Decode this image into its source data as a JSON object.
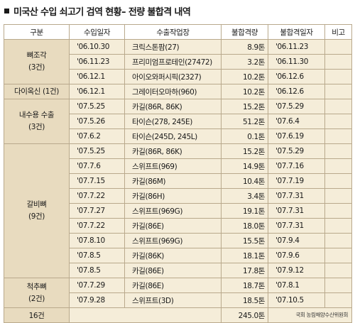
{
  "title": "미국산 수입 쇠고기 검역 현황– 전량 불합격 내역",
  "headers": [
    "구분",
    "수입일자",
    "수출작업장",
    "불합격량",
    "불합격일자",
    "비고"
  ],
  "groups": [
    {
      "category": [
        "뼈조각",
        "(3건)"
      ],
      "rows": [
        {
          "import_date": "'06.10.30",
          "plant": "크릭스톤팜(27)",
          "amount": "8.9톤",
          "reject_date": "'06.11.23"
        },
        {
          "import_date": "'06.11.23",
          "plant": "프리미엄프로테인(27472)",
          "amount": "3.2톤",
          "reject_date": "'06.11.30"
        },
        {
          "import_date": "'06.12.1",
          "plant": "아이오와퍼시픽(2327)",
          "amount": "10.2톤",
          "reject_date": "'06.12.6"
        }
      ]
    },
    {
      "category": [
        "다이옥신 (1건)"
      ],
      "rows": [
        {
          "import_date": "'06.12.1",
          "plant": "그레이터오마하(960)",
          "amount": "10.2톤",
          "reject_date": "'06.12.6"
        }
      ]
    },
    {
      "category": [
        "내수용 수출",
        "(3건)"
      ],
      "rows": [
        {
          "import_date": "'07.5.25",
          "plant": "카길(86R, 86K)",
          "amount": "15.2톤",
          "reject_date": "'07.5.29"
        },
        {
          "import_date": "'07.5.26",
          "plant": "타이슨(278, 245E)",
          "amount": "51.2톤",
          "reject_date": "'07.6.4"
        },
        {
          "import_date": "'07.6.2",
          "plant": "타이슨(245D, 245L)",
          "amount": "0.1톤",
          "reject_date": "'07.6.19"
        }
      ]
    },
    {
      "category": [
        "갈비뼈",
        "(9건)"
      ],
      "rows": [
        {
          "import_date": "'07.5.25",
          "plant": "카길(86R, 86K)",
          "amount": "15.2톤",
          "reject_date": "'07.5.29"
        },
        {
          "import_date": "'07.7.6",
          "plant": "스위프트(969)",
          "amount": "14.9톤",
          "reject_date": "'07.7.16"
        },
        {
          "import_date": "'07.7.15",
          "plant": "카길(86M)",
          "amount": "10.4톤",
          "reject_date": "'07.7.19"
        },
        {
          "import_date": "'07.7.22",
          "plant": "카길(86H)",
          "amount": "3.4톤",
          "reject_date": "'07.7.31"
        },
        {
          "import_date": "'07.7.27",
          "plant": "스위프트(969G)",
          "amount": "19.1톤",
          "reject_date": "'07.7.31"
        },
        {
          "import_date": "'07.7.22",
          "plant": "카길(86E)",
          "amount": "18.0톤",
          "reject_date": "'07.7.31"
        },
        {
          "import_date": "'07.8.10",
          "plant": "스위프트(969G)",
          "amount": "15.5톤",
          "reject_date": "'07.9.4"
        },
        {
          "import_date": "'07.8.5",
          "plant": "카길(86K)",
          "amount": "18.1톤",
          "reject_date": "'07.9.6"
        },
        {
          "import_date": "'07.8.5",
          "plant": "카길(86E)",
          "amount": "17.8톤",
          "reject_date": "'07.9.12"
        }
      ]
    },
    {
      "category": [
        "척추뼈",
        "(2건)"
      ],
      "rows": [
        {
          "import_date": "'07.7.29",
          "plant": "카길(86E)",
          "amount": "18.7톤",
          "reject_date": "'07.8.1"
        },
        {
          "import_date": "'07.9.28",
          "plant": "스위프트(3D)",
          "amount": "18.5톤",
          "reject_date": "'07.10.5"
        }
      ]
    }
  ],
  "total": {
    "label": "16건",
    "amount": "245.0톤"
  },
  "source": "국회 농림해양수산위원회"
}
